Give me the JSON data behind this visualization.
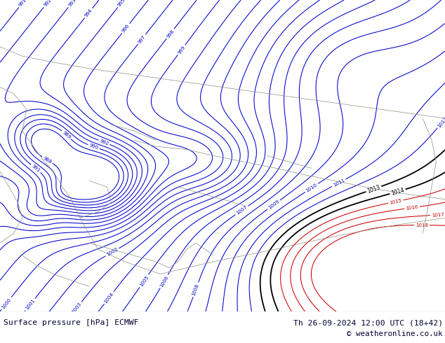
{
  "title_left": "Surface pressure [hPa] ECMWF",
  "title_right": "Th 26-09-2024 12:00 UTC (18+42)",
  "copyright": "© weatheronline.co.uk",
  "bg_color": "#a8e060",
  "contour_color_blue": "#0000cc",
  "contour_color_black": "#000000",
  "contour_color_red": "#cc0000",
  "footer_text_color": "#000033",
  "fig_width": 6.34,
  "fig_height": 4.9,
  "dpi": 100
}
